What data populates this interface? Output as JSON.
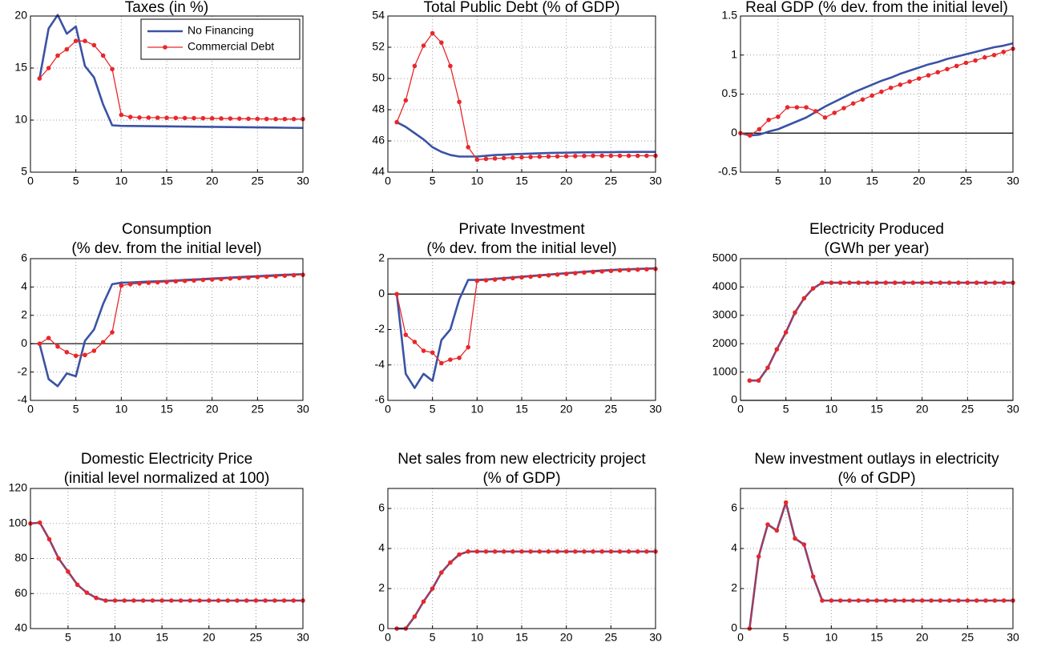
{
  "chart_data": [
    {
      "type": "line",
      "title": "Taxes (in %)",
      "legend": "upper right",
      "grid": true,
      "x": [
        1,
        2,
        3,
        4,
        5,
        6,
        7,
        8,
        9,
        10,
        11,
        12,
        13,
        14,
        15,
        16,
        17,
        18,
        19,
        20,
        21,
        22,
        23,
        24,
        25,
        26,
        27,
        28,
        29,
        30
      ],
      "xlim": [
        0,
        30
      ],
      "xticks": [
        0,
        5,
        10,
        15,
        20,
        25,
        30
      ],
      "ylim": [
        5,
        20
      ],
      "yticks": [
        5,
        10,
        15,
        20
      ],
      "series": [
        {
          "name": "No Financing",
          "color": "#3a53a4",
          "values": [
            14,
            18.8,
            20.1,
            18.3,
            19,
            15.2,
            14.1,
            11.5,
            9.5,
            9.45,
            9.44,
            9.43,
            9.42,
            9.41,
            9.4,
            9.39,
            9.38,
            9.37,
            9.36,
            9.35,
            9.34,
            9.33,
            9.32,
            9.31,
            9.3,
            9.29,
            9.28,
            9.27,
            9.26,
            9.25
          ]
        },
        {
          "name": "Commercial Debt",
          "color": "#e8272a",
          "values": [
            14,
            15,
            16.2,
            16.8,
            17.6,
            17.6,
            17.2,
            16.2,
            14.9,
            10.5,
            10.3,
            10.25,
            10.24,
            10.23,
            10.22,
            10.21,
            10.2,
            10.19,
            10.18,
            10.17,
            10.16,
            10.15,
            10.14,
            10.13,
            10.12,
            10.11,
            10.1,
            10.1,
            10.1,
            10.1
          ]
        }
      ]
    },
    {
      "type": "line",
      "title": "Total Public Debt (% of GDP)",
      "grid": true,
      "x": [
        1,
        2,
        3,
        4,
        5,
        6,
        7,
        8,
        9,
        10,
        11,
        12,
        13,
        14,
        15,
        16,
        17,
        18,
        19,
        20,
        21,
        22,
        23,
        24,
        25,
        26,
        27,
        28,
        29,
        30
      ],
      "xlim": [
        0,
        30
      ],
      "xticks": [
        0,
        5,
        10,
        15,
        20,
        25,
        30
      ],
      "ylim": [
        44,
        54
      ],
      "yticks": [
        44,
        46,
        48,
        50,
        52,
        54
      ],
      "series": [
        {
          "color": "#3a53a4",
          "values": [
            47.2,
            46.9,
            46.5,
            46.1,
            45.6,
            45.3,
            45.1,
            45.0,
            45.0,
            45.0,
            45.05,
            45.1,
            45.12,
            45.15,
            45.17,
            45.19,
            45.21,
            45.23,
            45.24,
            45.25,
            45.26,
            45.27,
            45.27,
            45.28,
            45.28,
            45.29,
            45.29,
            45.3,
            45.3,
            45.3
          ]
        },
        {
          "color": "#e8272a",
          "values": [
            47.2,
            48.6,
            50.8,
            52.1,
            52.9,
            52.3,
            50.8,
            48.5,
            45.6,
            44.8,
            44.85,
            44.88,
            44.9,
            44.93,
            44.95,
            44.97,
            44.99,
            45.0,
            45.01,
            45.02,
            45.03,
            45.04,
            45.05,
            45.05,
            45.05,
            45.05,
            45.05,
            45.05,
            45.05,
            45.05
          ]
        }
      ]
    },
    {
      "type": "line",
      "title": "Real GDP (% dev. from the initial level)",
      "grid": true,
      "zero_line": true,
      "x": [
        1,
        2,
        3,
        4,
        5,
        6,
        7,
        8,
        9,
        10,
        11,
        12,
        13,
        14,
        15,
        16,
        17,
        18,
        19,
        20,
        21,
        22,
        23,
        24,
        25,
        26,
        27,
        28,
        29,
        30
      ],
      "xlim": [
        1,
        30
      ],
      "xticks": [
        5,
        10,
        15,
        20,
        25,
        30
      ],
      "ylim": [
        -0.5,
        1.5
      ],
      "yticks": [
        -0.5,
        0,
        0.5,
        1,
        1.5
      ],
      "series": [
        {
          "color": "#3a53a4",
          "values": [
            0,
            -0.03,
            -0.02,
            0.02,
            0.05,
            0.1,
            0.15,
            0.2,
            0.27,
            0.34,
            0.4,
            0.46,
            0.52,
            0.57,
            0.62,
            0.67,
            0.71,
            0.76,
            0.8,
            0.84,
            0.88,
            0.91,
            0.95,
            0.98,
            1.01,
            1.04,
            1.07,
            1.1,
            1.12,
            1.15
          ]
        },
        {
          "color": "#e8272a",
          "values": [
            0,
            -0.03,
            0.05,
            0.17,
            0.21,
            0.33,
            0.33,
            0.33,
            0.28,
            0.2,
            0.26,
            0.32,
            0.38,
            0.43,
            0.48,
            0.53,
            0.58,
            0.62,
            0.66,
            0.7,
            0.74,
            0.78,
            0.82,
            0.86,
            0.9,
            0.93,
            0.97,
            1.0,
            1.04,
            1.08
          ]
        }
      ]
    },
    {
      "type": "line",
      "title": [
        "Consumption",
        "(% dev. from the initial level)"
      ],
      "grid": true,
      "zero_line": true,
      "x": [
        1,
        2,
        3,
        4,
        5,
        6,
        7,
        8,
        9,
        10,
        11,
        12,
        13,
        14,
        15,
        16,
        17,
        18,
        19,
        20,
        21,
        22,
        23,
        24,
        25,
        26,
        27,
        28,
        29,
        30
      ],
      "xlim": [
        0,
        30
      ],
      "xticks": [
        0,
        5,
        10,
        15,
        20,
        25,
        30
      ],
      "ylim": [
        -4,
        6
      ],
      "yticks": [
        -4,
        -2,
        0,
        2,
        4,
        6
      ],
      "series": [
        {
          "color": "#3a53a4",
          "values": [
            0,
            -2.5,
            -3.0,
            -2.1,
            -2.3,
            0.2,
            1.0,
            2.8,
            4.2,
            4.3,
            4.32,
            4.35,
            4.38,
            4.4,
            4.43,
            4.46,
            4.5,
            4.53,
            4.56,
            4.6,
            4.63,
            4.66,
            4.7,
            4.73,
            4.76,
            4.8,
            4.83,
            4.86,
            4.88,
            4.9
          ]
        },
        {
          "color": "#e8272a",
          "values": [
            0,
            0.4,
            -0.2,
            -0.6,
            -0.85,
            -0.8,
            -0.5,
            0.1,
            0.8,
            4.1,
            4.2,
            4.25,
            4.3,
            4.33,
            4.36,
            4.4,
            4.43,
            4.46,
            4.5,
            4.53,
            4.56,
            4.6,
            4.63,
            4.66,
            4.7,
            4.73,
            4.76,
            4.8,
            4.83,
            4.86
          ]
        }
      ]
    },
    {
      "type": "line",
      "title": [
        "Private Investment",
        "(% dev. from the initial level)"
      ],
      "grid": true,
      "zero_line": true,
      "x": [
        1,
        2,
        3,
        4,
        5,
        6,
        7,
        8,
        9,
        10,
        11,
        12,
        13,
        14,
        15,
        16,
        17,
        18,
        19,
        20,
        21,
        22,
        23,
        24,
        25,
        26,
        27,
        28,
        29,
        30
      ],
      "xlim": [
        0,
        30
      ],
      "xticks": [
        0,
        5,
        10,
        15,
        20,
        25,
        30
      ],
      "ylim": [
        -6,
        2
      ],
      "yticks": [
        -6,
        -4,
        -2,
        0,
        2
      ],
      "series": [
        {
          "color": "#3a53a4",
          "values": [
            0,
            -4.5,
            -5.3,
            -4.5,
            -4.9,
            -2.6,
            -2.0,
            -0.3,
            0.8,
            0.8,
            0.82,
            0.86,
            0.9,
            0.94,
            0.98,
            1.02,
            1.06,
            1.1,
            1.14,
            1.18,
            1.22,
            1.26,
            1.3,
            1.33,
            1.36,
            1.38,
            1.4,
            1.42,
            1.44,
            1.45
          ]
        },
        {
          "color": "#e8272a",
          "values": [
            0,
            -2.3,
            -2.7,
            -3.2,
            -3.3,
            -3.9,
            -3.7,
            -3.6,
            -3.0,
            0.75,
            0.78,
            0.82,
            0.86,
            0.9,
            0.94,
            0.98,
            1.02,
            1.06,
            1.1,
            1.14,
            1.18,
            1.22,
            1.25,
            1.28,
            1.31,
            1.34,
            1.36,
            1.38,
            1.4,
            1.42
          ]
        }
      ]
    },
    {
      "type": "line",
      "title": [
        "Electricity Produced",
        "(GWh per year)"
      ],
      "grid": true,
      "zero_line": true,
      "x": [
        1,
        2,
        3,
        4,
        5,
        6,
        7,
        8,
        9,
        10,
        11,
        12,
        13,
        14,
        15,
        16,
        17,
        18,
        19,
        20,
        21,
        22,
        23,
        24,
        25,
        26,
        27,
        28,
        29,
        30
      ],
      "xlim": [
        0,
        30
      ],
      "xticks": [
        0,
        5,
        10,
        15,
        20,
        25,
        30
      ],
      "ylim": [
        0,
        5000
      ],
      "yticks": [
        0,
        1000,
        2000,
        3000,
        4000,
        5000
      ],
      "series": [
        {
          "color": "#3a53a4",
          "values": [
            700,
            700,
            1150,
            1800,
            2400,
            3100,
            3600,
            3950,
            4150,
            4150,
            4150,
            4150,
            4150,
            4150,
            4150,
            4150,
            4150,
            4150,
            4150,
            4150,
            4150,
            4150,
            4150,
            4150,
            4150,
            4150,
            4150,
            4150,
            4150,
            4150
          ]
        },
        {
          "color": "#e8272a",
          "values": [
            700,
            700,
            1150,
            1800,
            2400,
            3100,
            3600,
            3950,
            4150,
            4150,
            4150,
            4150,
            4150,
            4150,
            4150,
            4150,
            4150,
            4150,
            4150,
            4150,
            4150,
            4150,
            4150,
            4150,
            4150,
            4150,
            4150,
            4150,
            4150,
            4150
          ]
        }
      ]
    },
    {
      "type": "line",
      "title": [
        "Domestic Electricity Price",
        "(initial level normalized at 100)"
      ],
      "grid": true,
      "x": [
        1,
        2,
        3,
        4,
        5,
        6,
        7,
        8,
        9,
        10,
        11,
        12,
        13,
        14,
        15,
        16,
        17,
        18,
        19,
        20,
        21,
        22,
        23,
        24,
        25,
        26,
        27,
        28,
        29,
        30
      ],
      "xlim": [
        1,
        30
      ],
      "xticks": [
        5,
        10,
        15,
        20,
        25,
        30
      ],
      "ylim": [
        40,
        120
      ],
      "yticks": [
        40,
        60,
        80,
        100,
        120
      ],
      "series": [
        {
          "color": "#3a53a4",
          "values": [
            100,
            100.5,
            91,
            80,
            72.5,
            65,
            60.5,
            57.5,
            56,
            56,
            56,
            56,
            56,
            56,
            56,
            56,
            56,
            56,
            56,
            56,
            56,
            56,
            56,
            56,
            56,
            56,
            56,
            56,
            56,
            56
          ]
        },
        {
          "color": "#e8272a",
          "values": [
            100,
            100.5,
            91,
            80,
            72.5,
            65,
            60.5,
            57.5,
            56,
            56,
            56,
            56,
            56,
            56,
            56,
            56,
            56,
            56,
            56,
            56,
            56,
            56,
            56,
            56,
            56,
            56,
            56,
            56,
            56,
            56
          ]
        }
      ]
    },
    {
      "type": "line",
      "title": [
        "Net sales from new electricity project",
        "(% of GDP)"
      ],
      "grid": true,
      "x": [
        1,
        2,
        3,
        4,
        5,
        6,
        7,
        8,
        9,
        10,
        11,
        12,
        13,
        14,
        15,
        16,
        17,
        18,
        19,
        20,
        21,
        22,
        23,
        24,
        25,
        26,
        27,
        28,
        29,
        30
      ],
      "xlim": [
        0,
        30
      ],
      "xticks": [
        0,
        5,
        10,
        15,
        20,
        25,
        30
      ],
      "ylim": [
        0,
        7
      ],
      "yticks": [
        0,
        2,
        4,
        6
      ],
      "series": [
        {
          "color": "#3a53a4",
          "values": [
            0,
            0,
            0.6,
            1.35,
            2.0,
            2.8,
            3.3,
            3.7,
            3.85,
            3.85,
            3.85,
            3.85,
            3.85,
            3.85,
            3.85,
            3.85,
            3.85,
            3.85,
            3.85,
            3.85,
            3.85,
            3.85,
            3.85,
            3.85,
            3.85,
            3.85,
            3.85,
            3.85,
            3.85,
            3.85
          ]
        },
        {
          "color": "#e8272a",
          "values": [
            0,
            0,
            0.6,
            1.35,
            2.0,
            2.8,
            3.3,
            3.7,
            3.85,
            3.85,
            3.85,
            3.85,
            3.85,
            3.85,
            3.85,
            3.85,
            3.85,
            3.85,
            3.85,
            3.85,
            3.85,
            3.85,
            3.85,
            3.85,
            3.85,
            3.85,
            3.85,
            3.85,
            3.85,
            3.85
          ]
        }
      ]
    },
    {
      "type": "line",
      "title": [
        "New investment outlays in electricity",
        "(% of GDP)"
      ],
      "grid": true,
      "x": [
        1,
        2,
        3,
        4,
        5,
        6,
        7,
        8,
        9,
        10,
        11,
        12,
        13,
        14,
        15,
        16,
        17,
        18,
        19,
        20,
        21,
        22,
        23,
        24,
        25,
        26,
        27,
        28,
        29,
        30
      ],
      "xlim": [
        0,
        30
      ],
      "xticks": [
        0,
        5,
        10,
        15,
        20,
        25,
        30
      ],
      "ylim": [
        0,
        7
      ],
      "yticks": [
        0,
        2,
        4,
        6
      ],
      "series": [
        {
          "color": "#3a53a4",
          "values": [
            0,
            3.6,
            5.2,
            4.9,
            6.3,
            4.5,
            4.2,
            2.6,
            1.4,
            1.4,
            1.4,
            1.4,
            1.4,
            1.4,
            1.4,
            1.4,
            1.4,
            1.4,
            1.4,
            1.4,
            1.4,
            1.4,
            1.4,
            1.4,
            1.4,
            1.4,
            1.4,
            1.4,
            1.4,
            1.4
          ]
        },
        {
          "color": "#e8272a",
          "values": [
            0,
            3.6,
            5.2,
            4.9,
            6.3,
            4.5,
            4.2,
            2.6,
            1.4,
            1.4,
            1.4,
            1.4,
            1.4,
            1.4,
            1.4,
            1.4,
            1.4,
            1.4,
            1.4,
            1.4,
            1.4,
            1.4,
            1.4,
            1.4,
            1.4,
            1.4,
            1.4,
            1.4,
            1.4,
            1.4
          ]
        }
      ]
    }
  ]
}
